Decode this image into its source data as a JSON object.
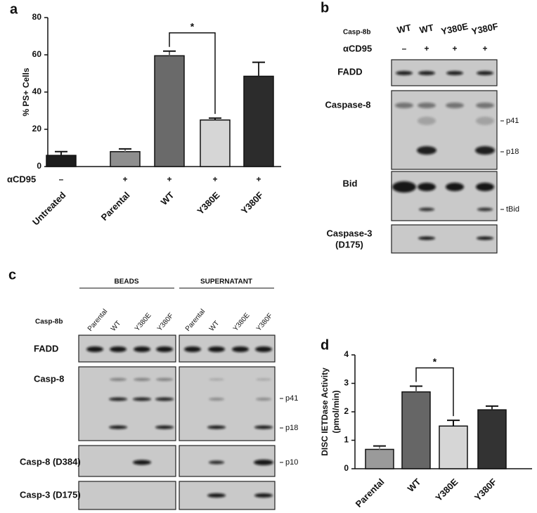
{
  "panels": [
    "a",
    "b",
    "c",
    "d"
  ],
  "chart_data": [
    {
      "type": "bar",
      "ylabel": "% PS+ Cells",
      "categories": [
        "Untreated",
        "Parental",
        "WT",
        "Y380E",
        "Y380F"
      ],
      "values": [
        6,
        8,
        59.5,
        25,
        48.5
      ],
      "errors": [
        2,
        1.5,
        2.5,
        1,
        7.5
      ],
      "colors": [
        "#1c1c1c",
        "#8e8e8e",
        "#6a6a6a",
        "#d6d6d6",
        "#2c2c2c"
      ],
      "row_label": "αCD95",
      "row_values": [
        "–",
        "+",
        "+",
        "+",
        "+"
      ],
      "significance": {
        "label": "*",
        "between": [
          "WT",
          "Y380E"
        ]
      },
      "ylim": [
        0,
        80
      ],
      "yticks": [
        0,
        20,
        40,
        60,
        80
      ]
    },
    {
      "type": "bar",
      "ylabel_lines": [
        "DISC IETDase Activity",
        "(pmol/min)"
      ],
      "categories": [
        "Parental",
        "WT",
        "Y380E",
        "Y380F"
      ],
      "values": [
        0.68,
        2.7,
        1.5,
        2.07
      ],
      "errors": [
        0.12,
        0.2,
        0.2,
        0.13
      ],
      "colors": [
        "#9a9a9a",
        "#666666",
        "#d6d6d6",
        "#333333"
      ],
      "significance": {
        "label": "*",
        "between": [
          "WT",
          "Y380E"
        ]
      },
      "ylim": [
        0,
        4
      ],
      "yticks": [
        0,
        1,
        2,
        3,
        4
      ]
    }
  ],
  "panel_b": {
    "header_label": "Casp-8b",
    "lanes": [
      "WT",
      "WT",
      "Y380E",
      "Y380F"
    ],
    "treatment_label": "αCD95",
    "treatment": [
      "–",
      "+",
      "+",
      "+"
    ],
    "rows": [
      {
        "label_lines": [
          "FADD"
        ],
        "markers": []
      },
      {
        "label_lines": [
          "Caspase-8"
        ],
        "markers": [
          "p41",
          "p18"
        ]
      },
      {
        "label_lines": [
          "Bid"
        ],
        "markers": [
          "tBid"
        ]
      },
      {
        "label_lines": [
          "Caspase-3",
          "(D175)"
        ],
        "markers": []
      }
    ]
  },
  "panel_c": {
    "groups": [
      "BEADS",
      "SUPERNATANT"
    ],
    "header_label": "Casp-8b",
    "lanes": [
      "Parental",
      "WT",
      "Y380E",
      "Y380F"
    ],
    "rows": [
      {
        "label": "FADD",
        "markers": []
      },
      {
        "label": "Casp-8",
        "markers": [
          "p41",
          "p18"
        ]
      },
      {
        "label": "Casp-8 (D384)",
        "markers": [
          "p10"
        ]
      },
      {
        "label": "Casp-3 (D175)",
        "markers": []
      }
    ]
  }
}
